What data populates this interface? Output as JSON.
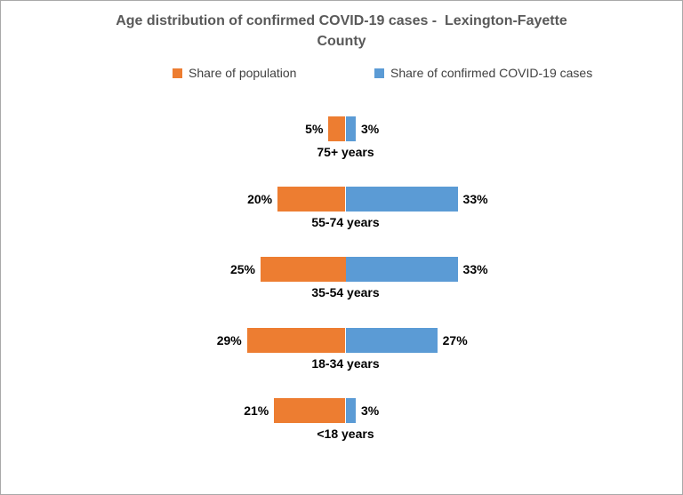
{
  "header": {
    "title_line1": "Age distribution of confirmed COVID-19 cases -  Lexington-Fayette",
    "title_line2": "County"
  },
  "legend": {
    "items": [
      {
        "label": "Share of population",
        "color": "#ED7D31"
      },
      {
        "label": "Share of confirmed COVID-19 cases",
        "color": "#5B9BD5"
      }
    ]
  },
  "chart_data": {
    "type": "bar",
    "subtype": "diverging_horizontal",
    "title": "Age distribution of confirmed COVID-19 cases -  Lexington-Fayette County",
    "categories": [
      "75+ years",
      "55-74 years",
      "35-54 years",
      "18-34 years",
      "<18 years"
    ],
    "series": [
      {
        "name": "Share of population",
        "side": "left",
        "color": "#ED7D31",
        "values": [
          5,
          20,
          25,
          29,
          21
        ]
      },
      {
        "name": "Share of confirmed COVID-19 cases",
        "side": "right",
        "color": "#5B9BD5",
        "values": [
          3,
          33,
          33,
          27,
          3
        ]
      }
    ],
    "unit": "%",
    "value_labels": "outside_ends",
    "legend_position": "top",
    "grid": false,
    "axes_visible": false
  },
  "colors": {
    "background": "#FFFFFF",
    "frame_border": "#A9A9A9",
    "title_text": "#595959",
    "legend_text": "#404040",
    "value_label_text": "#000000"
  }
}
